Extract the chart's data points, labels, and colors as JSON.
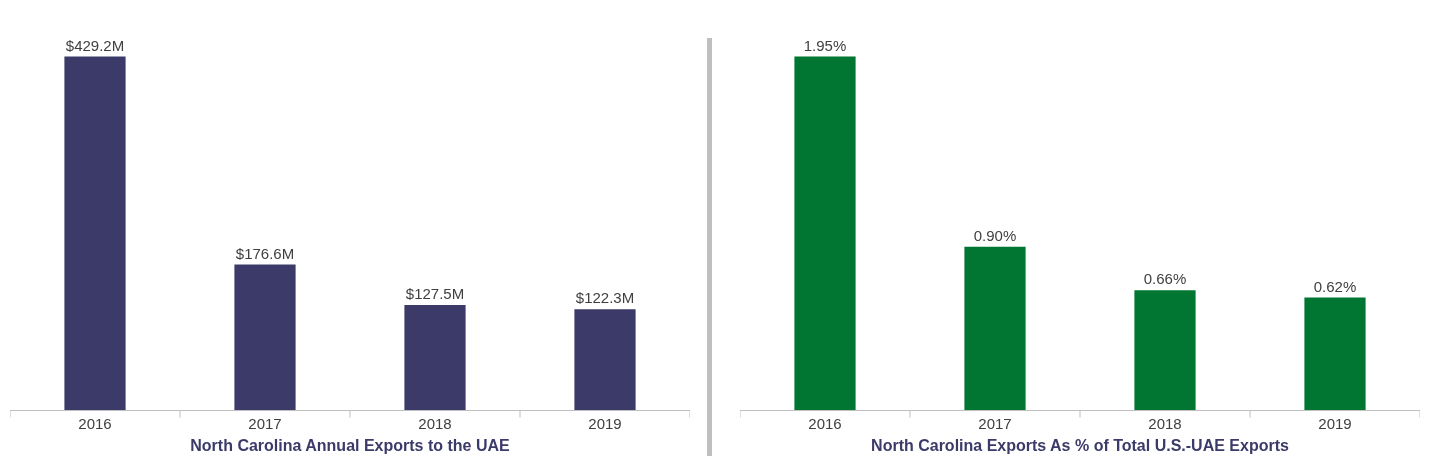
{
  "chart_data": [
    {
      "type": "bar",
      "xlabel": "North Carolina Annual Exports to the UAE",
      "categories": [
        "2016",
        "2017",
        "2018",
        "2019"
      ],
      "values": [
        429.2,
        176.6,
        127.5,
        122.3
      ],
      "value_labels": [
        "$429.2M",
        "$176.6M",
        "$127.5M",
        "$122.3M"
      ],
      "color": "#3b3a68"
    },
    {
      "type": "bar",
      "xlabel": "North Carolina Exports As % of Total U.S.-UAE Exports",
      "categories": [
        "2016",
        "2017",
        "2018",
        "2019"
      ],
      "values": [
        1.95,
        0.9,
        0.66,
        0.62
      ],
      "value_labels": [
        "1.95%",
        "0.90%",
        "0.66%",
        "0.62%"
      ],
      "color": "#007632"
    }
  ]
}
